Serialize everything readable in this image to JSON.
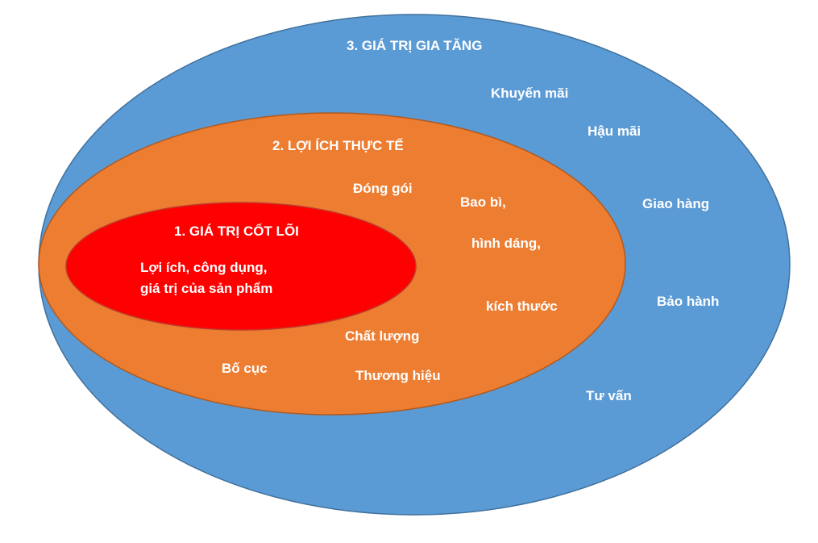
{
  "colors": {
    "outer_fill": "#5b9bd5",
    "outer_stroke": "#41719c",
    "middle_fill": "#ed7d31",
    "middle_stroke": "#ae5a21",
    "inner_fill": "#ff0000",
    "inner_stroke": "#c0392b",
    "text": "#ffffff"
  },
  "outer": {
    "title": "3. GIÁ TRỊ GIA TĂNG",
    "items": [
      "Khuyến mãi",
      "Hậu mãi",
      "Giao hàng",
      "Bảo hành",
      "Tư vấn"
    ]
  },
  "middle": {
    "title": "2. LỢI ÍCH THỰC TẾ",
    "items": [
      "Đóng gói",
      "Bao bì,",
      "hình dáng,",
      "kích thước",
      "Chất lượng",
      "Thương hiệu",
      "Bố cục"
    ]
  },
  "inner": {
    "title": "1. GIÁ TRỊ CỐT LÕI",
    "lines": [
      "Lợi ích, công dụng,",
      "giá trị của sản phẩm"
    ]
  }
}
